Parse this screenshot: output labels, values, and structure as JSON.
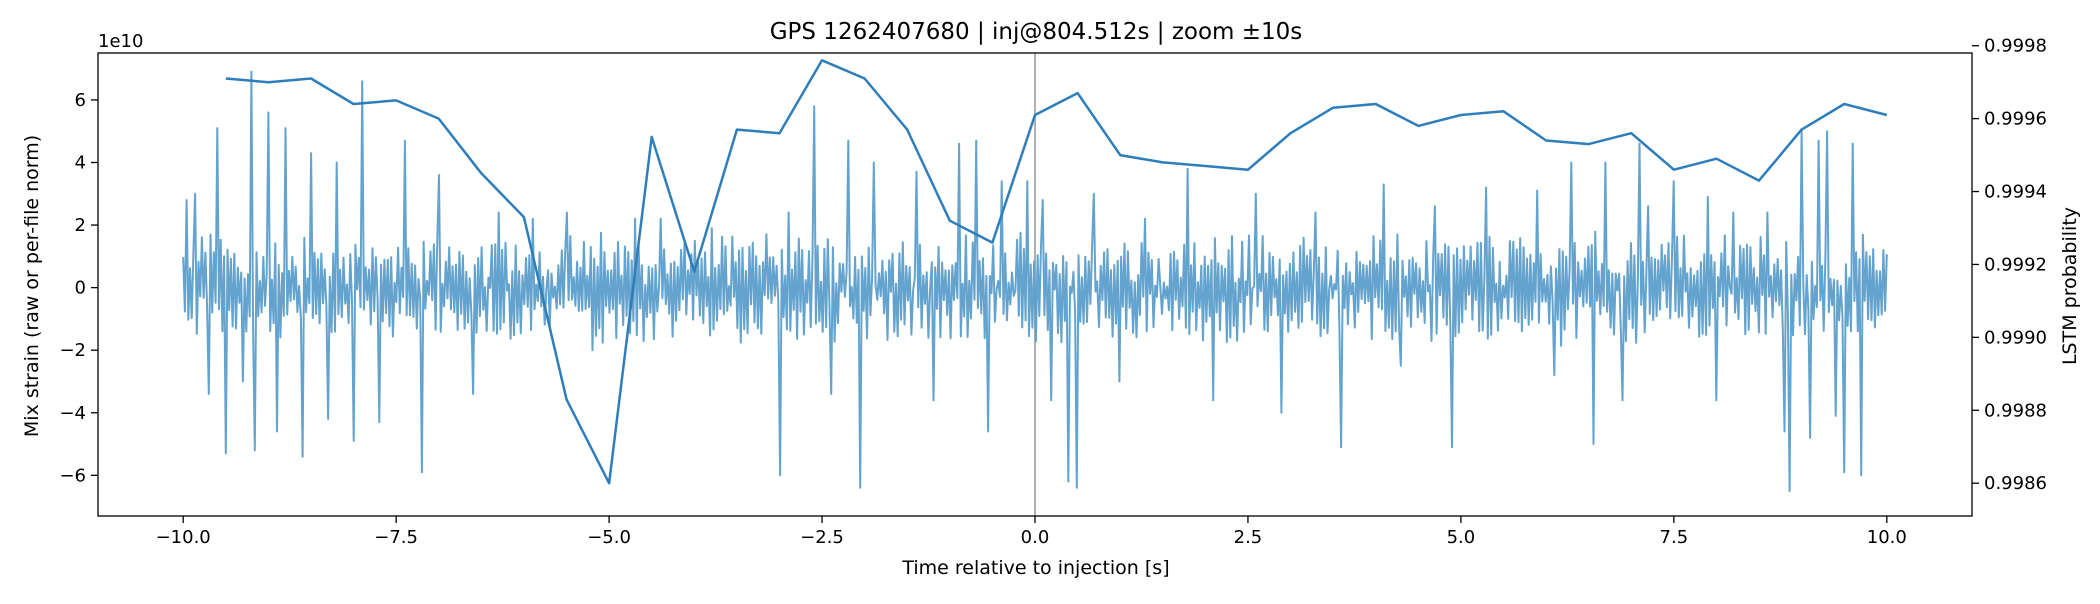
{
  "chart_data": {
    "type": "line",
    "title": "GPS 1262407680 | inj@804.512s | zoom ±10s",
    "xlabel": "Time relative to injection [s]",
    "ylabel_left": "Mix strain (raw or per-file norm)",
    "ylabel_right": "LSTM probability",
    "left_offset_text": "1e10",
    "xlim": [
      -11,
      11
    ],
    "ylim_left": [
      -7.3,
      7.5
    ],
    "ylim_right": [
      0.99851,
      0.99978
    ],
    "x_ticks": [
      -10.0,
      -7.5,
      -5.0,
      -2.5,
      0.0,
      2.5,
      5.0,
      7.5,
      10.0
    ],
    "x_tick_labels": [
      "−10.0",
      "−7.5",
      "−5.0",
      "−2.5",
      "0.0",
      "2.5",
      "5.0",
      "7.5",
      "10.0"
    ],
    "y_left_ticks": [
      -6,
      -4,
      -2,
      0,
      2,
      4,
      6
    ],
    "y_left_tick_labels": [
      "−6",
      "−4",
      "−2",
      "0",
      "2",
      "4",
      "6"
    ],
    "y_right_ticks": [
      0.9986,
      0.9988,
      0.999,
      0.9992,
      0.9994,
      0.9996,
      0.9998
    ],
    "y_right_tick_labels": [
      "0.9986",
      "0.9988",
      "0.9990",
      "0.9992",
      "0.9994",
      "0.9996",
      "0.9998"
    ],
    "injection_line_x": 0.0,
    "grid": false,
    "legend": "none",
    "series": [
      {
        "axis": "left",
        "render": "noise",
        "color": "#5b9ecb",
        "x_start": -10.0,
        "x_end": 10.0,
        "typical_amplitude": 0.9,
        "spikes": [
          {
            "x": -9.95,
            "y": 2.8
          },
          {
            "x": -9.85,
            "y": 3.0
          },
          {
            "x": -9.7,
            "y": -3.4
          },
          {
            "x": -9.6,
            "y": 5.1
          },
          {
            "x": -9.5,
            "y": -5.3
          },
          {
            "x": -9.3,
            "y": -3.0
          },
          {
            "x": -9.2,
            "y": 6.9
          },
          {
            "x": -9.15,
            "y": -5.2
          },
          {
            "x": -9.0,
            "y": 5.6
          },
          {
            "x": -8.9,
            "y": -4.6
          },
          {
            "x": -8.8,
            "y": 5.1
          },
          {
            "x": -8.6,
            "y": -5.4
          },
          {
            "x": -8.5,
            "y": 4.3
          },
          {
            "x": -8.3,
            "y": -4.2
          },
          {
            "x": -8.2,
            "y": 4.0
          },
          {
            "x": -8.0,
            "y": -4.9
          },
          {
            "x": -7.9,
            "y": 6.6
          },
          {
            "x": -7.7,
            "y": -4.3
          },
          {
            "x": -7.4,
            "y": 4.7
          },
          {
            "x": -7.2,
            "y": -5.9
          },
          {
            "x": -7.0,
            "y": 3.6
          },
          {
            "x": -6.6,
            "y": -3.4
          },
          {
            "x": -6.3,
            "y": 2.4
          },
          {
            "x": -5.9,
            "y": 2.2
          },
          {
            "x": -5.5,
            "y": 2.4
          },
          {
            "x": -5.2,
            "y": -2.0
          },
          {
            "x": -4.7,
            "y": 2.2
          },
          {
            "x": -4.4,
            "y": 2.2
          },
          {
            "x": -3.8,
            "y": 1.9
          },
          {
            "x": -3.0,
            "y": -6.0
          },
          {
            "x": -2.9,
            "y": 2.4
          },
          {
            "x": -2.6,
            "y": 5.8
          },
          {
            "x": -2.4,
            "y": -3.4
          },
          {
            "x": -2.2,
            "y": 4.7
          },
          {
            "x": -2.05,
            "y": -6.4
          },
          {
            "x": -1.9,
            "y": 4.0
          },
          {
            "x": -1.4,
            "y": 3.7
          },
          {
            "x": -1.2,
            "y": -3.6
          },
          {
            "x": -0.9,
            "y": 4.6
          },
          {
            "x": -0.7,
            "y": 4.7
          },
          {
            "x": -0.55,
            "y": -4.6
          },
          {
            "x": -0.4,
            "y": 3.4
          },
          {
            "x": -0.1,
            "y": 3.4
          },
          {
            "x": 0.1,
            "y": 2.8
          },
          {
            "x": 0.2,
            "y": -3.6
          },
          {
            "x": 0.4,
            "y": -6.2
          },
          {
            "x": 0.5,
            "y": -6.4
          },
          {
            "x": 0.7,
            "y": 3.0
          },
          {
            "x": 1.0,
            "y": -3.0
          },
          {
            "x": 1.3,
            "y": 2.2
          },
          {
            "x": 1.8,
            "y": 3.8
          },
          {
            "x": 2.1,
            "y": -3.6
          },
          {
            "x": 2.6,
            "y": 3.0
          },
          {
            "x": 2.9,
            "y": -4.0
          },
          {
            "x": 3.3,
            "y": 2.4
          },
          {
            "x": 3.6,
            "y": -5.1
          },
          {
            "x": 4.1,
            "y": 3.3
          },
          {
            "x": 4.3,
            "y": -2.5
          },
          {
            "x": 4.7,
            "y": 2.6
          },
          {
            "x": 4.9,
            "y": -5.1
          },
          {
            "x": 5.3,
            "y": 3.2
          },
          {
            "x": 5.9,
            "y": 3.1
          },
          {
            "x": 6.1,
            "y": -2.8
          },
          {
            "x": 6.3,
            "y": 4.0
          },
          {
            "x": 6.55,
            "y": -5.0
          },
          {
            "x": 6.7,
            "y": 4.0
          },
          {
            "x": 6.9,
            "y": -3.6
          },
          {
            "x": 7.1,
            "y": 4.6
          },
          {
            "x": 7.2,
            "y": 2.6
          },
          {
            "x": 7.5,
            "y": 3.4
          },
          {
            "x": 7.9,
            "y": 2.9
          },
          {
            "x": 8.0,
            "y": -3.6
          },
          {
            "x": 8.2,
            "y": 2.4
          },
          {
            "x": 8.6,
            "y": 2.4
          },
          {
            "x": 8.8,
            "y": -4.6
          },
          {
            "x": 8.85,
            "y": -6.5
          },
          {
            "x": 9.0,
            "y": 5.0
          },
          {
            "x": 9.1,
            "y": -4.8
          },
          {
            "x": 9.2,
            "y": 4.7
          },
          {
            "x": 9.3,
            "y": 5.0
          },
          {
            "x": 9.4,
            "y": -4.1
          },
          {
            "x": 9.5,
            "y": -5.9
          },
          {
            "x": 9.6,
            "y": 4.6
          },
          {
            "x": 9.7,
            "y": -6.0
          },
          {
            "x": 9.8,
            "y": 1.0
          },
          {
            "x": 9.95,
            "y": 1.2
          }
        ]
      },
      {
        "axis": "right",
        "render": "line",
        "color": "#2e7ebc",
        "x": [
          -9.5,
          -9.0,
          -8.5,
          -8.0,
          -7.5,
          -7.0,
          -6.5,
          -6.0,
          -5.5,
          -5.0,
          -4.5,
          -4.0,
          -3.5,
          -3.0,
          -2.5,
          -2.0,
          -1.5,
          -1.0,
          -0.5,
          0.0,
          0.5,
          1.0,
          1.5,
          2.0,
          2.5,
          3.0,
          3.5,
          4.0,
          4.5,
          5.0,
          5.5,
          6.0,
          6.5,
          7.0,
          7.5,
          8.0,
          8.5,
          9.0,
          9.5,
          10.0
        ],
        "y": [
          0.99971,
          0.9997,
          0.99971,
          0.99964,
          0.99965,
          0.9996,
          0.99945,
          0.99933,
          0.99883,
          0.9986,
          0.99955,
          0.99918,
          0.99957,
          0.99956,
          0.99976,
          0.99971,
          0.99957,
          0.99932,
          0.99926,
          0.99961,
          0.99967,
          0.9995,
          0.99948,
          0.99947,
          0.99946,
          0.99956,
          0.99963,
          0.99964,
          0.99958,
          0.99961,
          0.99962,
          0.99954,
          0.99953,
          0.99956,
          0.99946,
          0.99949,
          0.99943,
          0.99957,
          0.99964,
          0.99961
        ]
      }
    ]
  }
}
